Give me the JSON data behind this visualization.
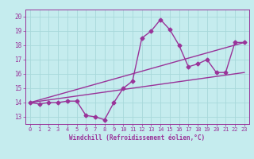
{
  "xlabel": "Windchill (Refroidissement éolien,°C)",
  "background_color": "#c5ecee",
  "line_color": "#993399",
  "grid_color": "#a8d8da",
  "xlim": [
    -0.5,
    23.5
  ],
  "ylim": [
    12.5,
    20.5
  ],
  "xticks": [
    0,
    1,
    2,
    3,
    4,
    5,
    6,
    7,
    8,
    9,
    10,
    11,
    12,
    13,
    14,
    15,
    16,
    17,
    18,
    19,
    20,
    21,
    22,
    23
  ],
  "yticks": [
    13,
    14,
    15,
    16,
    17,
    18,
    19,
    20
  ],
  "line1_x": [
    0,
    1,
    2,
    3,
    4,
    5,
    6,
    7,
    8,
    9,
    10,
    11,
    12,
    13,
    14,
    15,
    16,
    17,
    18,
    19,
    20,
    21,
    22,
    23
  ],
  "line1_y": [
    14.0,
    13.9,
    14.0,
    14.0,
    14.1,
    14.1,
    13.1,
    13.0,
    12.8,
    14.0,
    15.0,
    15.5,
    18.5,
    19.0,
    19.8,
    19.1,
    18.0,
    16.5,
    16.7,
    17.0,
    16.1,
    16.1,
    18.2,
    18.2
  ],
  "line2_x": [
    0,
    23
  ],
  "line2_y": [
    14.0,
    18.2
  ],
  "line3_x": [
    0,
    23
  ],
  "line3_y": [
    14.0,
    16.1
  ],
  "marker": "D",
  "markersize": 2.5,
  "linewidth": 1.0,
  "tick_fontsize": 5.0,
  "xlabel_fontsize": 5.5
}
